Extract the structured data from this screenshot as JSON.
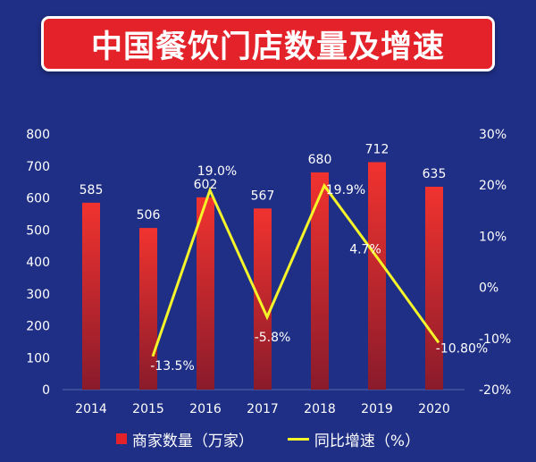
{
  "title": "中国餐饮门店数量及增速",
  "colors": {
    "background": "#1f2f86",
    "bar_top": "#f1332f",
    "bar_bottom": "#8a1b2b",
    "line": "#f5f52a",
    "text": "#ffffff"
  },
  "chart_data": {
    "type": "bar",
    "categories": [
      "2014",
      "2015",
      "2016",
      "2017",
      "2018",
      "2019",
      "2020"
    ],
    "series": [
      {
        "name": "商家数量（万家）",
        "type": "bar",
        "axis": "left",
        "values": [
          585,
          506,
          602,
          567,
          680,
          712,
          635
        ],
        "labels": [
          "585",
          "506",
          "602",
          "567",
          "680",
          "712",
          "635"
        ]
      },
      {
        "name": "同比增速（%）",
        "type": "line",
        "axis": "right",
        "values": [
          null,
          -13.5,
          19.0,
          -5.8,
          19.9,
          4.7,
          -10.8
        ],
        "labels": [
          "",
          "-13.5%",
          "19.0%",
          "-5.8%",
          "19.9%",
          "4.7%",
          "-10.80%"
        ]
      }
    ],
    "y_left": {
      "min": 0,
      "max": 800,
      "ticks": [
        "0",
        "100",
        "200",
        "300",
        "400",
        "500",
        "600",
        "700",
        "800"
      ]
    },
    "y_right": {
      "min": -20,
      "max": 30,
      "ticks": [
        "-20%",
        "-10%",
        "0%",
        "10%",
        "20%",
        "30%"
      ]
    },
    "grid": false,
    "legend_position": "bottom"
  },
  "legend": {
    "bar_label": "商家数量（万家）",
    "line_label": "同比增速（%）"
  }
}
